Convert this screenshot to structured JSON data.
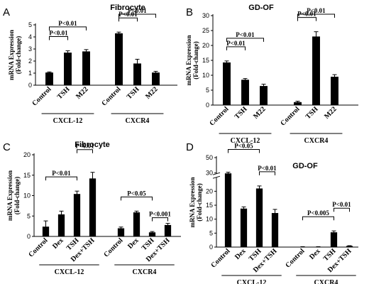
{
  "chart_data": [
    {
      "panel": "A",
      "type": "bar",
      "title": "Fibrocyte",
      "ylabel": "mRNA Expression (Fold-change)",
      "ylim": [
        0,
        5
      ],
      "yticks": [
        0,
        1,
        2,
        3,
        4,
        5
      ],
      "categories": [
        "Control",
        "TSH",
        "M22",
        "Control",
        "TSH",
        "M22"
      ],
      "groups": [
        {
          "label": "CXCL-12",
          "indices": [
            0,
            1,
            2
          ]
        },
        {
          "label": "CXCR4",
          "indices": [
            3,
            4,
            5
          ]
        }
      ],
      "values": [
        1.05,
        2.7,
        2.8,
        4.3,
        1.8,
        1.05
      ],
      "errors": [
        0.05,
        0.15,
        0.15,
        0.1,
        0.35,
        0.1
      ],
      "annotations": [
        {
          "text": "P<0.01",
          "from": 0,
          "to": 2,
          "level": 2
        },
        {
          "text": "P<0.01",
          "from": 0,
          "to": 1,
          "level": 1
        },
        {
          "text": "P<0.01",
          "from": 3,
          "to": 5,
          "level": 2
        },
        {
          "text": "P<0.01",
          "from": 3,
          "to": 4,
          "level": 1
        }
      ]
    },
    {
      "panel": "B",
      "type": "bar",
      "title": "GD-OF",
      "ylabel": "mRNA Expression (Fold-change)",
      "ylim": [
        0,
        30
      ],
      "yticks": [
        0,
        5,
        10,
        15,
        20,
        25,
        30
      ],
      "categories": [
        "Control",
        "TSH",
        "M22",
        "Control",
        "TSH",
        "M22"
      ],
      "groups": [
        {
          "label": "CXCL-12",
          "indices": [
            0,
            1,
            2
          ]
        },
        {
          "label": "CXCR4",
          "indices": [
            3,
            4,
            5
          ]
        }
      ],
      "values": [
        14.3,
        8.5,
        6.4,
        1.0,
        23.0,
        9.5
      ],
      "errors": [
        0.5,
        0.4,
        0.6,
        0.3,
        1.6,
        0.7
      ],
      "annotations": [
        {
          "text": "P<0.01",
          "from": 0,
          "to": 2,
          "level": 2
        },
        {
          "text": "P<0.01",
          "from": 0,
          "to": 1,
          "level": 1
        },
        {
          "text": "P<0.01",
          "from": 3,
          "to": 5,
          "level": 2
        },
        {
          "text": "P<0.01",
          "from": 3,
          "to": 4,
          "level": 1
        }
      ]
    },
    {
      "panel": "C",
      "type": "bar",
      "title": "Fibrocyte",
      "ylabel": "mRNA Expression (Fold-change)",
      "ylim": [
        0,
        20
      ],
      "yticks": [
        0,
        5,
        10,
        15,
        20
      ],
      "categories": [
        "Control",
        "Dex",
        "TSH",
        "Dex+TSH",
        "Control",
        "Dex",
        "TSH",
        "Dex+TSH"
      ],
      "groups": [
        {
          "label": "CXCL-12",
          "indices": [
            0,
            1,
            2,
            3
          ]
        },
        {
          "label": "CXCR4",
          "indices": [
            4,
            5,
            6,
            7
          ]
        }
      ],
      "values": [
        2.4,
        5.4,
        10.4,
        14.2,
        2.0,
        5.9,
        1.0,
        2.8
      ],
      "errors": [
        1.4,
        0.8,
        0.7,
        1.5,
        0.3,
        0.3,
        0.2,
        0.4
      ],
      "annotations": [
        {
          "text": "P<0.01",
          "from": 0,
          "to": 2,
          "level": 1
        },
        {
          "text": "P<0.01",
          "from": 2,
          "to": 3,
          "level": 2
        },
        {
          "text": "P<0.05",
          "from": 4,
          "to": 6,
          "level": 1
        },
        {
          "text": "P<0.001",
          "from": 6,
          "to": 7,
          "level": 0
        }
      ]
    },
    {
      "panel": "D",
      "type": "bar",
      "title": "GD-OF",
      "ylabel": "mRNA Expression (Fold-change)",
      "ylim": [
        0,
        50
      ],
      "yticks": [
        0,
        5,
        10,
        15,
        20,
        30,
        50
      ],
      "axis_break": [
        25,
        29
      ],
      "categories": [
        "Control",
        "Dex",
        "TSH",
        "Dex+TSH",
        "Control",
        "Dex",
        "TSH",
        "Dex+TSH"
      ],
      "groups": [
        {
          "label": "CXCL-12",
          "indices": [
            0,
            1,
            2,
            3
          ]
        },
        {
          "label": "CXCR4",
          "indices": [
            4,
            5,
            6,
            7
          ]
        }
      ],
      "values": [
        29.5,
        13.8,
        21.0,
        12.2,
        0.1,
        0.1,
        5.3,
        0.4
      ],
      "errors": [
        1.5,
        0.6,
        0.9,
        1.3,
        0.05,
        0.05,
        0.5,
        0.1
      ],
      "annotations": [
        {
          "text": "P<0.05",
          "from": 0,
          "to": 2,
          "level": 2
        },
        {
          "text": "P<0.01",
          "from": 2,
          "to": 3,
          "level": 1
        },
        {
          "text": "P<0.005",
          "from": 4,
          "to": 6,
          "level": 1
        },
        {
          "text": "P<0.01",
          "from": 6,
          "to": 7,
          "level": 2
        }
      ]
    }
  ]
}
